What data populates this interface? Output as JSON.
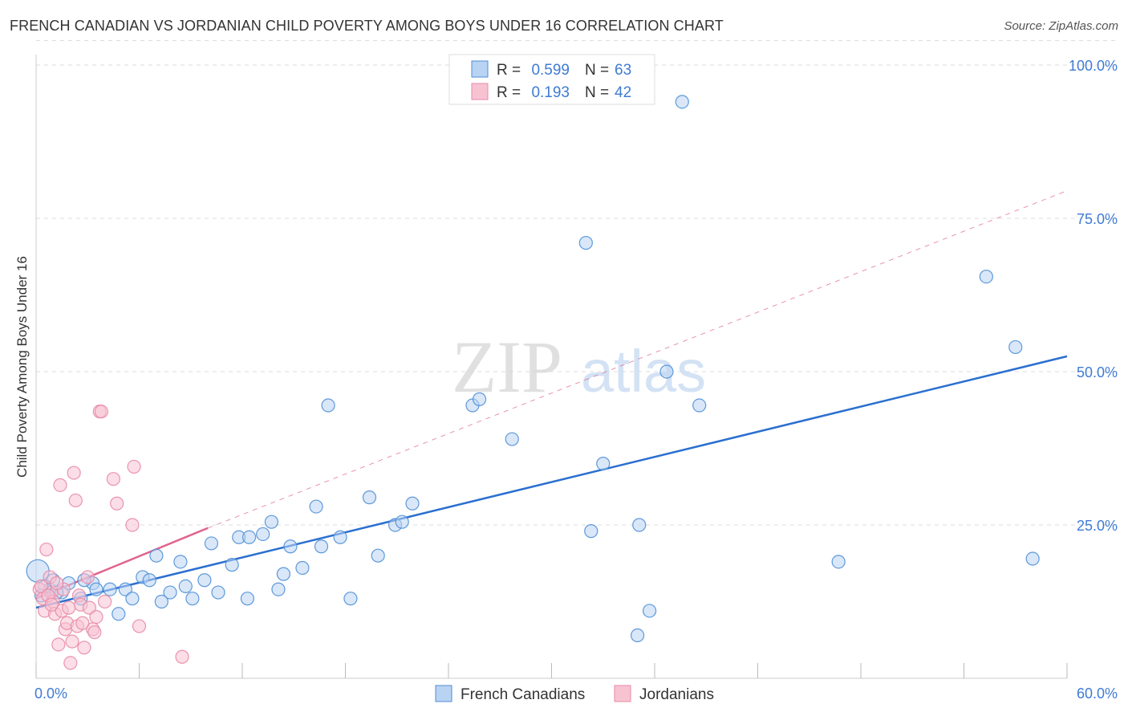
{
  "title": "FRENCH CANADIAN VS JORDANIAN CHILD POVERTY AMONG BOYS UNDER 16 CORRELATION CHART",
  "source": "Source: ZipAtlas.com",
  "watermark": {
    "zip": "ZIP",
    "atlas": "atlas"
  },
  "colors": {
    "blue": "#4e8fd6",
    "blue_fill": "#b9d3f3",
    "blue_line": "#2a6fd0",
    "pink": "#e88aa6",
    "pink_fill": "#f7c3d3",
    "pink_line": "#e0648e",
    "tick_text": "#3f7bd4",
    "grid": "#dddddd"
  },
  "legend_top": {
    "rows": [
      {
        "r_label": "R =",
        "r_value": "0.599",
        "n_label": "N =",
        "n_value": "63",
        "series": "blue"
      },
      {
        "r_label": "R =",
        "r_value": "0.193",
        "n_label": "N =",
        "n_value": "42",
        "series": "pink"
      }
    ]
  },
  "chart_data": {
    "type": "scatter",
    "title": "FRENCH CANADIAN VS JORDANIAN CHILD POVERTY AMONG BOYS UNDER 16 CORRELATION CHART",
    "xlabel": "",
    "ylabel": "Child Poverty Among Boys Under 16",
    "xlim": [
      0,
      60
    ],
    "ylim": [
      0,
      105
    ],
    "x_tick_labels": {
      "min": "0.0%",
      "max": "60.0%"
    },
    "y_ticks": [
      {
        "value": 25,
        "label": "25.0%"
      },
      {
        "value": 50,
        "label": "50.0%"
      },
      {
        "value": 75,
        "label": "75.0%"
      },
      {
        "value": 100,
        "label": "100.0%"
      }
    ],
    "series": [
      {
        "name": "French Canadians",
        "color": "blue",
        "trend": {
          "x": [
            0,
            60
          ],
          "y": [
            11.5,
            52.5
          ],
          "style": "solid"
        },
        "points": [
          [
            0.1,
            17.5
          ],
          [
            0.8,
            14.5
          ],
          [
            1.0,
            16.0
          ],
          [
            1.5,
            14.0
          ],
          [
            1.9,
            15.5
          ],
          [
            2.6,
            13.0
          ],
          [
            3.3,
            15.5
          ],
          [
            3.5,
            14.5
          ],
          [
            4.3,
            14.5
          ],
          [
            4.8,
            10.5
          ],
          [
            5.2,
            14.5
          ],
          [
            5.6,
            13.0
          ],
          [
            6.2,
            16.5
          ],
          [
            6.6,
            16.0
          ],
          [
            7.0,
            20.0
          ],
          [
            7.3,
            12.5
          ],
          [
            7.8,
            14.0
          ],
          [
            8.4,
            19.0
          ],
          [
            8.7,
            15.0
          ],
          [
            9.1,
            13.0
          ],
          [
            9.8,
            16.0
          ],
          [
            10.2,
            22.0
          ],
          [
            10.6,
            14.0
          ],
          [
            11.4,
            18.5
          ],
          [
            11.8,
            23.0
          ],
          [
            12.3,
            13.0
          ],
          [
            12.4,
            23.0
          ],
          [
            13.2,
            23.5
          ],
          [
            13.7,
            25.5
          ],
          [
            14.1,
            14.5
          ],
          [
            14.4,
            17.0
          ],
          [
            14.8,
            21.5
          ],
          [
            15.5,
            18.0
          ],
          [
            16.3,
            28.0
          ],
          [
            16.6,
            21.5
          ],
          [
            17.0,
            44.5
          ],
          [
            17.7,
            23.0
          ],
          [
            18.3,
            13.0
          ],
          [
            19.4,
            29.5
          ],
          [
            19.9,
            20.0
          ],
          [
            20.9,
            25.0
          ],
          [
            21.3,
            25.5
          ],
          [
            21.9,
            28.5
          ],
          [
            25.4,
            44.5
          ],
          [
            25.8,
            45.5
          ],
          [
            27.7,
            39.0
          ],
          [
            32.0,
            71.0
          ],
          [
            32.3,
            24.0
          ],
          [
            33.0,
            35.0
          ],
          [
            35.0,
            7.0
          ],
          [
            35.1,
            25.0
          ],
          [
            35.7,
            11.0
          ],
          [
            36.7,
            50.0
          ],
          [
            37.6,
            94.0
          ],
          [
            38.6,
            44.5
          ],
          [
            46.7,
            19.0
          ],
          [
            55.3,
            65.5
          ],
          [
            57.0,
            54.0
          ],
          [
            58.0,
            19.5
          ],
          [
            0.5,
            15.0
          ],
          [
            1.2,
            14.0
          ],
          [
            2.8,
            16.0
          ],
          [
            0.3,
            13.5
          ]
        ]
      },
      {
        "name": "Jordanians",
        "color": "pink",
        "trend": {
          "x": [
            0,
            10
          ],
          "y": [
            13.0,
            24.5
          ],
          "style": "solid",
          "extended": {
            "x": [
              10,
              60
            ],
            "y": [
              24.5,
              79.5
            ],
            "style": "dashed"
          }
        },
        "points": [
          [
            0.2,
            14.5
          ],
          [
            0.4,
            13.0
          ],
          [
            0.5,
            11.0
          ],
          [
            0.6,
            21.0
          ],
          [
            0.8,
            16.5
          ],
          [
            0.9,
            14.0
          ],
          [
            1.0,
            12.5
          ],
          [
            1.1,
            10.5
          ],
          [
            1.3,
            5.5
          ],
          [
            1.4,
            31.5
          ],
          [
            1.5,
            11.0
          ],
          [
            1.7,
            8.0
          ],
          [
            1.8,
            9.0
          ],
          [
            1.9,
            11.5
          ],
          [
            2.0,
            2.5
          ],
          [
            2.1,
            6.0
          ],
          [
            2.2,
            33.5
          ],
          [
            2.3,
            29.0
          ],
          [
            2.4,
            8.5
          ],
          [
            2.5,
            13.5
          ],
          [
            2.6,
            12.0
          ],
          [
            2.8,
            5.0
          ],
          [
            3.0,
            16.5
          ],
          [
            3.1,
            11.5
          ],
          [
            3.3,
            8.0
          ],
          [
            3.5,
            10.0
          ],
          [
            3.7,
            43.5
          ],
          [
            3.8,
            43.5
          ],
          [
            4.0,
            12.5
          ],
          [
            4.5,
            32.5
          ],
          [
            4.7,
            28.5
          ],
          [
            5.6,
            25.0
          ],
          [
            5.7,
            34.5
          ],
          [
            6.0,
            8.5
          ],
          [
            8.5,
            3.5
          ],
          [
            0.3,
            15.0
          ],
          [
            0.7,
            13.5
          ],
          [
            1.6,
            14.5
          ],
          [
            2.7,
            9.0
          ],
          [
            3.4,
            7.5
          ],
          [
            0.9,
            12.0
          ],
          [
            1.2,
            15.5
          ]
        ]
      }
    ],
    "legend": [
      "French Canadians",
      "Jordanians"
    ],
    "legend_position": "bottom-center",
    "grid": true
  }
}
